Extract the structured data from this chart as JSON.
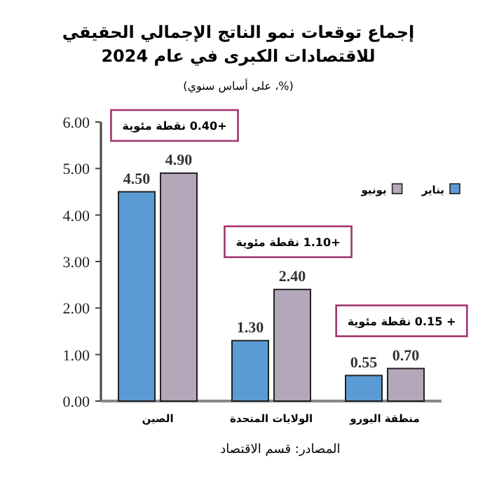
{
  "chart_data": {
    "type": "bar",
    "title": "إجماع توقعات نمو الناتج الإجمالي الحقيقي للاقتصادات الكبرى في عام 2024",
    "subtitle": "(%، على أساس سنوي)",
    "categories": [
      "الصين",
      "الولايات المتحدة",
      "منطقة اليورو"
    ],
    "series": [
      {
        "name": "يناير",
        "color": "#5b9bd5",
        "values": [
          4.5,
          1.3,
          0.55
        ],
        "value_labels": [
          "4.50",
          "1.30",
          "0.55"
        ]
      },
      {
        "name": "يونيو",
        "color": "#b4a7b9",
        "values": [
          4.9,
          2.4,
          0.7
        ],
        "value_labels": [
          "4.90",
          "2.40",
          "0.70"
        ]
      }
    ],
    "ylim": [
      0,
      6
    ],
    "yticks": [
      {
        "value": 0,
        "label": "0.00"
      },
      {
        "value": 1,
        "label": "1.00"
      },
      {
        "value": 2,
        "label": "2.00"
      },
      {
        "value": 3,
        "label": "3.00"
      },
      {
        "value": 4,
        "label": "4.00"
      },
      {
        "value": 5,
        "label": "5.00"
      },
      {
        "value": 6,
        "label": "6.00"
      }
    ],
    "legend": "top right",
    "annotations": [
      "+0.40 نقطة مئوية",
      "+1.10 نقطة مئوية",
      "+ 0.15 نقطة مئوية",
      "المصادر: قسم الاقتصاد"
    ]
  }
}
